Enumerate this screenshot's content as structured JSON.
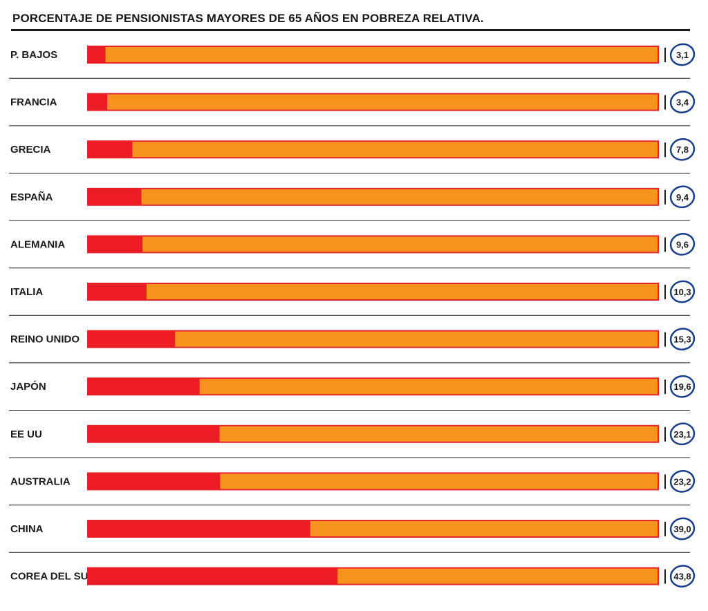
{
  "chart_data": {
    "type": "bar",
    "title": "PORCENTAJE DE PENSIONISTAS MAYORES DE 65 AÑOS EN POBREZA RELATIVA.",
    "categories": [
      "P. BAJOS",
      "FRANCIA",
      "GRECIA",
      "ESPAÑA",
      "ALEMANIA",
      "ITALIA",
      "REINO UNIDO",
      "JAPÓN",
      "EE UU",
      "AUSTRALIA",
      "CHINA",
      "COREA DEL SUR"
    ],
    "values": [
      3.1,
      3.4,
      7.8,
      9.4,
      9.6,
      10.3,
      15.3,
      19.6,
      23.1,
      23.2,
      39.0,
      43.8
    ],
    "value_labels": [
      "3,1",
      "3,4",
      "7,8",
      "9,4",
      "9,6",
      "10,3",
      "15,3",
      "19,6",
      "23,1",
      "23,2",
      "39,0",
      "43,8"
    ],
    "orientation": "horizontal",
    "xlim": [
      0,
      100
    ],
    "grid": false,
    "legend": "none",
    "colors": {
      "value_fill": "#ec1c24",
      "remainder_fill": "#f7941d",
      "bar_border": "#e3262e",
      "circle_stroke": "#173d8c",
      "rule": "#1a1a1a"
    }
  }
}
